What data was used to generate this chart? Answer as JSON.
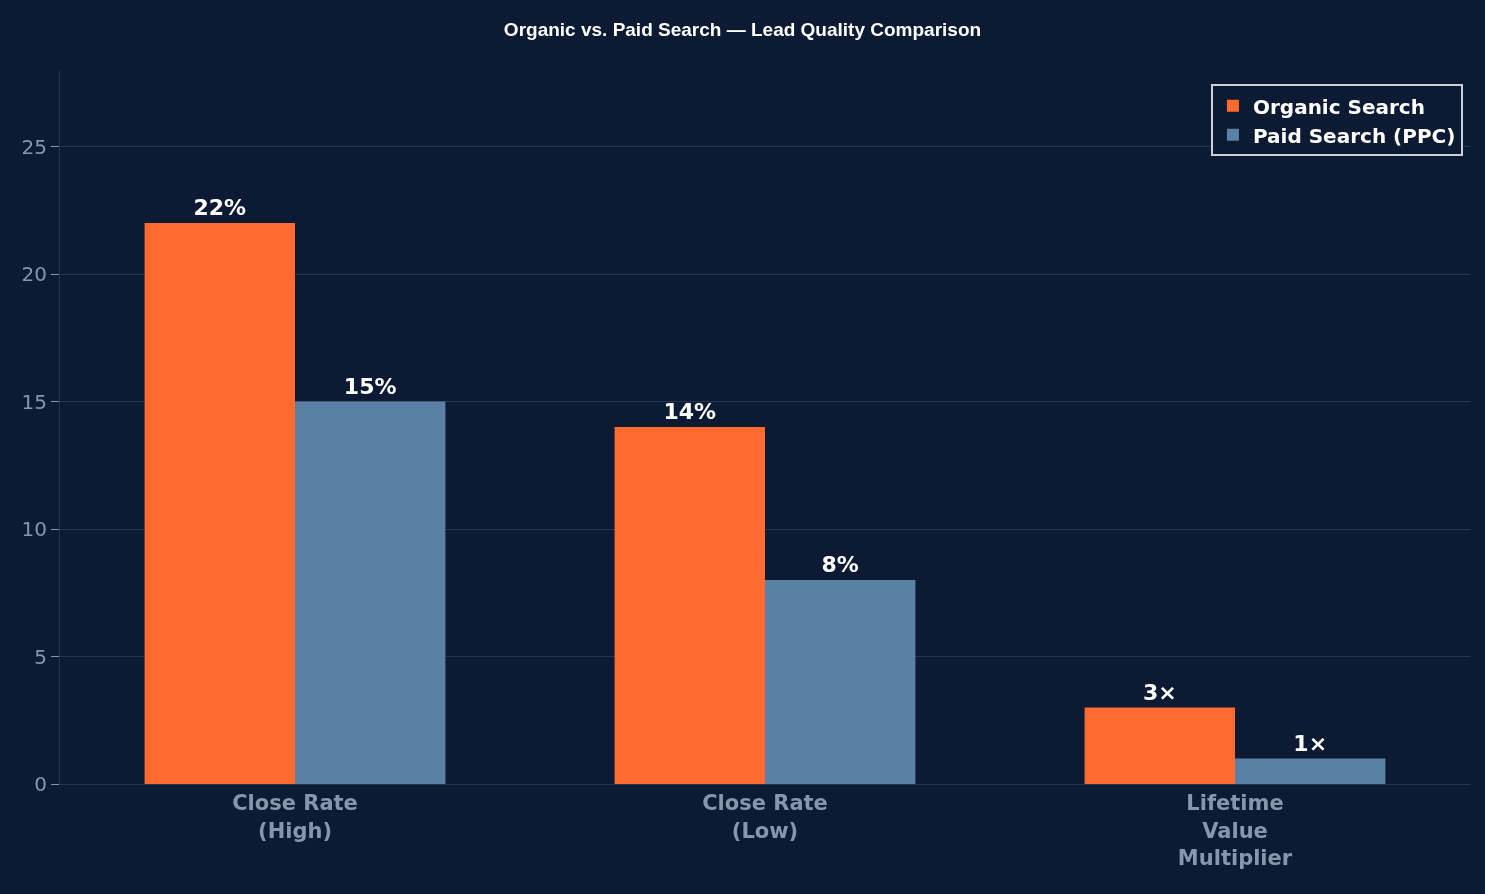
{
  "chart_data": {
    "type": "bar",
    "title": "Organic vs. Paid Search — Lead Quality Comparison",
    "categories": [
      "Close Rate\n(High)",
      "Close Rate\n(Low)",
      "Lifetime\nValue\nMultiplier"
    ],
    "series": [
      {
        "name": "Organic Search",
        "color": "#ff6b2e",
        "values": [
          22,
          14,
          3
        ],
        "value_labels": [
          "22%",
          "14%",
          "3×"
        ]
      },
      {
        "name": "Paid Search (PPC)",
        "color": "#5b80a5",
        "values": [
          15,
          8,
          1
        ],
        "value_labels": [
          "15%",
          "8%",
          "1×"
        ]
      }
    ],
    "ylim": [
      0,
      28
    ],
    "yticks": [
      0,
      5,
      10,
      15,
      20,
      25
    ],
    "grid": "y",
    "legend": "top right"
  }
}
